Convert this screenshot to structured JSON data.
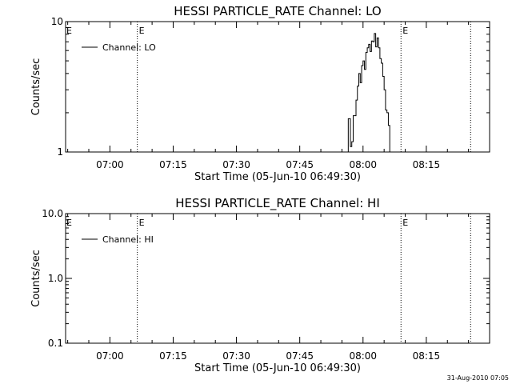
{
  "footer": {
    "timestamp": "31-Aug-2010 07:05"
  },
  "chart_data": [
    {
      "type": "line",
      "title": "HESSI PARTICLE_RATE Channel: LO",
      "xlabel": "Start Time (05-Jun-10 06:49:30)",
      "ylabel": "Counts/sec",
      "yscale": "log",
      "xlim": [
        "06:49:30",
        "08:30:00"
      ],
      "ylim": [
        1,
        10
      ],
      "x_ticks": [
        "07:00",
        "07:15",
        "07:30",
        "07:45",
        "08:00",
        "08:15"
      ],
      "y_ticks": [
        {
          "value": 1,
          "label": "1"
        },
        {
          "value": 10,
          "label": "10"
        }
      ],
      "legend": {
        "position": "top-left",
        "entries": [
          "Channel: LO"
        ]
      },
      "flag_lines": [
        {
          "x": "07:06:30",
          "label": "E"
        },
        {
          "x": "08:09:00",
          "label": "E"
        },
        {
          "x": "08:25:30",
          "label": ""
        }
      ],
      "series": [
        {
          "name": "Channel: LO",
          "color": "#000000",
          "x": [
            "07:56:00",
            "07:56:30",
            "07:57:00",
            "07:57:20",
            "07:57:40",
            "07:58:00",
            "07:58:20",
            "07:58:40",
            "07:59:00",
            "07:59:20",
            "07:59:40",
            "08:00:00",
            "08:00:20",
            "08:00:40",
            "08:01:00",
            "08:01:20",
            "08:01:40",
            "08:02:00",
            "08:02:20",
            "08:02:40",
            "08:03:00",
            "08:03:20",
            "08:03:40",
            "08:04:00",
            "08:04:20",
            "08:04:40",
            "08:05:00",
            "08:05:20",
            "08:05:40",
            "08:06:00",
            "08:06:20"
          ],
          "y": [
            1.0,
            1.8,
            1.1,
            1.2,
            1.9,
            1.9,
            2.5,
            3.2,
            4.0,
            3.4,
            4.6,
            5.0,
            4.3,
            5.8,
            6.3,
            6.7,
            5.9,
            7.1,
            7.0,
            8.1,
            6.4,
            7.5,
            6.3,
            5.2,
            4.8,
            3.8,
            3.0,
            2.1,
            2.0,
            1.6,
            1.0
          ]
        }
      ]
    },
    {
      "type": "line",
      "title": "HESSI PARTICLE_RATE Channel: HI",
      "xlabel": "Start Time (05-Jun-10 06:49:30)",
      "ylabel": "Counts/sec",
      "yscale": "log",
      "xlim": [
        "06:49:30",
        "08:30:00"
      ],
      "ylim": [
        0.1,
        10
      ],
      "x_ticks": [
        "07:00",
        "07:15",
        "07:30",
        "07:45",
        "08:00",
        "08:15"
      ],
      "y_ticks": [
        {
          "value": 0.1,
          "label": "0.1"
        },
        {
          "value": 1,
          "label": "1.0"
        },
        {
          "value": 10,
          "label": "10.0"
        }
      ],
      "legend": {
        "position": "top-left",
        "entries": [
          "Channel: HI"
        ]
      },
      "flag_lines": [
        {
          "x": "07:06:30",
          "label": "E"
        },
        {
          "x": "08:09:00",
          "label": "E"
        },
        {
          "x": "08:25:30",
          "label": ""
        }
      ],
      "series": [
        {
          "name": "Channel: HI",
          "color": "#000000",
          "x": [],
          "y": []
        }
      ]
    }
  ]
}
